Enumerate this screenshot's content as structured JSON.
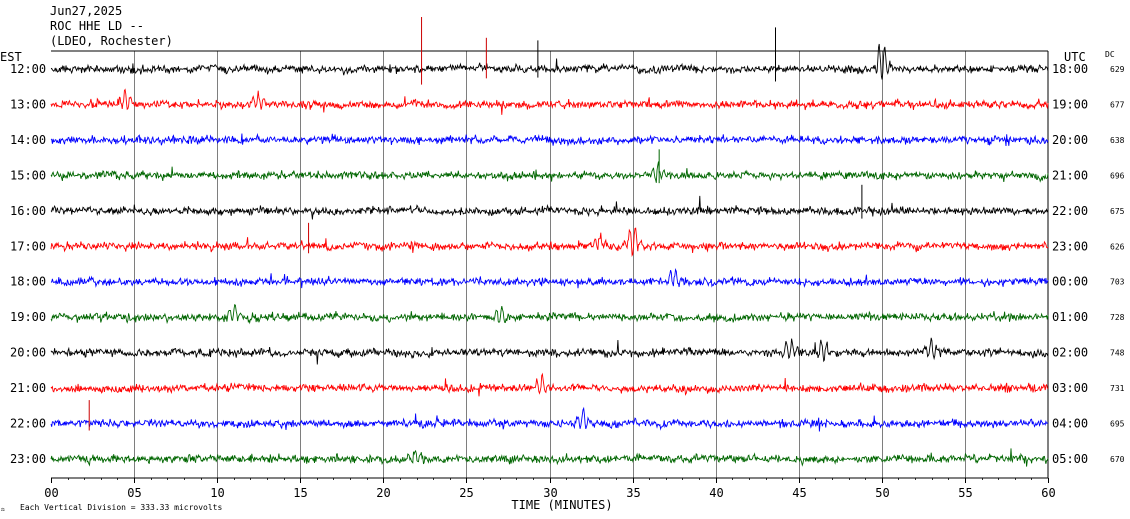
{
  "header": {
    "date": "Jun27,2025",
    "station": "ROC HHE LD --",
    "network": "(LDEO, Rochester)"
  },
  "chart_data": {
    "type": "line",
    "title": "",
    "left_axis_label": "EST",
    "right_axis_label": "UTC",
    "dc_label": "DC",
    "xlabel": "TIME (MINUTES)",
    "xlim": [
      0,
      60
    ],
    "x_ticks": [
      "00",
      "05",
      "10",
      "15",
      "20",
      "25",
      "30",
      "35",
      "40",
      "45",
      "50",
      "55",
      "60"
    ],
    "grid": "vertical every 5 minutes",
    "footer_note": "Each Vertical Division =  333.33 microvolts",
    "colors": [
      "#000000",
      "#ff0000",
      "#0000ff",
      "#006600"
    ],
    "series": [
      {
        "est": "12:00",
        "utc": "18:00",
        "dc": "629",
        "color": "#000000"
      },
      {
        "est": "13:00",
        "utc": "19:00",
        "dc": "677",
        "color": "#ff0000"
      },
      {
        "est": "14:00",
        "utc": "20:00",
        "dc": "638",
        "color": "#0000ff"
      },
      {
        "est": "15:00",
        "utc": "21:00",
        "dc": "696",
        "color": "#006600"
      },
      {
        "est": "16:00",
        "utc": "22:00",
        "dc": "675",
        "color": "#000000"
      },
      {
        "est": "17:00",
        "utc": "23:00",
        "dc": "626",
        "color": "#ff0000"
      },
      {
        "est": "18:00",
        "utc": "00:00",
        "dc": "703",
        "color": "#0000ff"
      },
      {
        "est": "19:00",
        "utc": "01:00",
        "dc": "728",
        "color": "#006600"
      },
      {
        "est": "20:00",
        "utc": "02:00",
        "dc": "748",
        "color": "#000000"
      },
      {
        "est": "21:00",
        "utc": "03:00",
        "dc": "731",
        "color": "#ff0000"
      },
      {
        "est": "22:00",
        "utc": "04:00",
        "dc": "695",
        "color": "#0000ff"
      },
      {
        "est": "23:00",
        "utc": "05:00",
        "dc": "670",
        "color": "#006600"
      }
    ],
    "events": [
      {
        "row": 0,
        "minute": 50.0,
        "amplitude": 2.2
      },
      {
        "row": 1,
        "minute": 4.5,
        "amplitude": 1.2
      },
      {
        "row": 1,
        "minute": 12.5,
        "amplitude": 0.8
      },
      {
        "row": 3,
        "minute": 36.5,
        "amplitude": 1.0
      },
      {
        "row": 5,
        "minute": 35.0,
        "amplitude": 1.6
      },
      {
        "row": 5,
        "minute": 33.0,
        "amplitude": 1.0
      },
      {
        "row": 6,
        "minute": 37.5,
        "amplitude": 1.0
      },
      {
        "row": 7,
        "minute": 11.0,
        "amplitude": 1.0
      },
      {
        "row": 7,
        "minute": 27.0,
        "amplitude": 0.8
      },
      {
        "row": 8,
        "minute": 44.5,
        "amplitude": 1.1
      },
      {
        "row": 8,
        "minute": 46.5,
        "amplitude": 1.2
      },
      {
        "row": 8,
        "minute": 53.0,
        "amplitude": 1.0
      },
      {
        "row": 9,
        "minute": 29.5,
        "amplitude": 0.9
      },
      {
        "row": 10,
        "minute": 32.0,
        "amplitude": 1.3
      },
      {
        "row": 11,
        "minute": 22.0,
        "amplitude": 0.8
      }
    ],
    "spikes": [
      {
        "row": 0,
        "minute": 22.3,
        "color": "#cc0000",
        "height": 2.0
      },
      {
        "row": 0,
        "minute": 26.2,
        "color": "#cc0000",
        "height": 1.2
      },
      {
        "row": 0,
        "minute": 29.3,
        "color": "#000000",
        "height": 1.1
      },
      {
        "row": 0,
        "minute": 43.6,
        "color": "#000000",
        "height": 1.6
      },
      {
        "row": 3,
        "minute": 36.6,
        "color": "#006600",
        "height": 1.0
      },
      {
        "row": 4,
        "minute": 48.8,
        "color": "#000000",
        "height": 1.0
      },
      {
        "row": 5,
        "minute": 15.5,
        "color": "#cc0000",
        "height": 0.9
      },
      {
        "row": 10,
        "minute": 2.3,
        "color": "#cc0000",
        "height": 0.9
      }
    ]
  }
}
